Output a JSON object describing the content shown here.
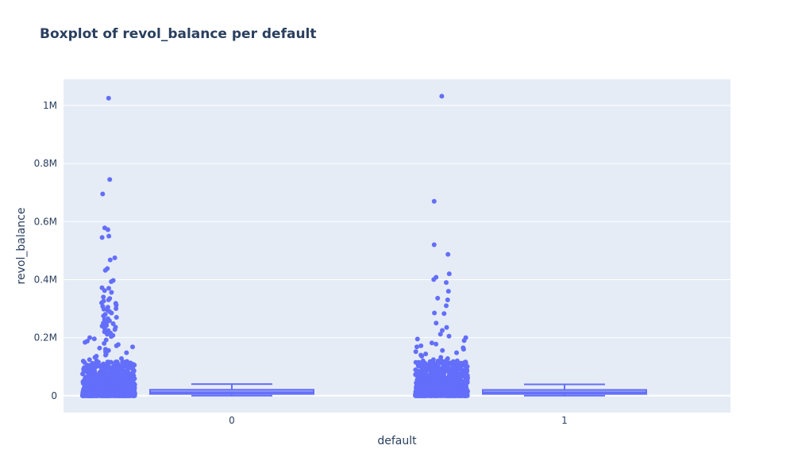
{
  "chart_data": {
    "type": "box",
    "title": "Boxplot of revol_balance per default",
    "xlabel": "default",
    "ylabel": "revol_balance",
    "categories": [
      "0",
      "1"
    ],
    "ylim": [
      -58000,
      1090000
    ],
    "yticks": [
      {
        "value": 0,
        "label": "0"
      },
      {
        "value": 200000,
        "label": "0.2M"
      },
      {
        "value": 400000,
        "label": "0.4M"
      },
      {
        "value": 600000,
        "label": "0.6M"
      },
      {
        "value": 800000,
        "label": "0.8M"
      },
      {
        "value": 1000000,
        "label": "1M"
      }
    ],
    "grid": true,
    "legend": "none",
    "colors": {
      "marker": "#636efa",
      "plot_bg": "#e5ecf6",
      "grid": "#ffffff",
      "text": "#2a3f5f"
    },
    "series": [
      {
        "category": "0",
        "min": 0,
        "q1": 6000,
        "median": 11800,
        "q3": 20500,
        "upper_fence": 40000,
        "outliers": [
          1025000,
          745000,
          695000,
          578000,
          572000,
          550000,
          545000,
          475000,
          468000,
          438000,
          432000,
          397000,
          393000,
          372000,
          370000,
          362000,
          356000,
          340000,
          335000,
          330000,
          326000,
          320000,
          318000,
          312000,
          308000,
          305000,
          300000,
          298000,
          295000,
          290000,
          285000,
          280000,
          275000,
          270000,
          265000,
          262000,
          258000,
          255000,
          250000,
          248000,
          246000,
          242000,
          240000,
          236000,
          232000,
          228000,
          224000,
          220000,
          216000,
          212000,
          208000,
          204000,
          200000,
          196000,
          192000,
          188000,
          184000,
          180000,
          176000,
          172000,
          168000,
          164000,
          160000,
          156000,
          152000,
          148000,
          144000,
          140000,
          136000,
          132000,
          128000,
          124000,
          120000,
          116000,
          112000,
          108000,
          104000,
          100000,
          96000,
          92000,
          88000,
          84000,
          80000,
          76000,
          72000,
          68000,
          64000,
          60000,
          56000,
          52000,
          48000,
          44000,
          40000,
          36000,
          32000,
          28000,
          24000,
          20000,
          16000,
          12000,
          8000,
          4000,
          1000
        ]
      },
      {
        "category": "1",
        "min": 0,
        "q1": 6000,
        "median": 11500,
        "q3": 20000,
        "upper_fence": 39000,
        "outliers": [
          1032000,
          670000,
          520000,
          487000,
          420000,
          408000,
          400000,
          390000,
          360000,
          336000,
          330000,
          310000,
          285000,
          283000,
          250000,
          235000,
          225000,
          212000,
          205000,
          200000,
          195000,
          190000,
          182000,
          178000,
          172000,
          168000,
          165000,
          160000,
          156000,
          152000,
          148000,
          144000,
          140000,
          136000,
          132000,
          128000,
          124000,
          120000,
          116000,
          112000,
          108000,
          104000,
          100000,
          96000,
          92000,
          88000,
          84000,
          80000,
          76000,
          72000,
          68000,
          64000,
          60000,
          56000,
          52000,
          48000,
          44000,
          40000,
          36000,
          32000,
          28000,
          24000,
          20000,
          16000,
          12000,
          8000,
          4000,
          1000
        ]
      }
    ]
  }
}
